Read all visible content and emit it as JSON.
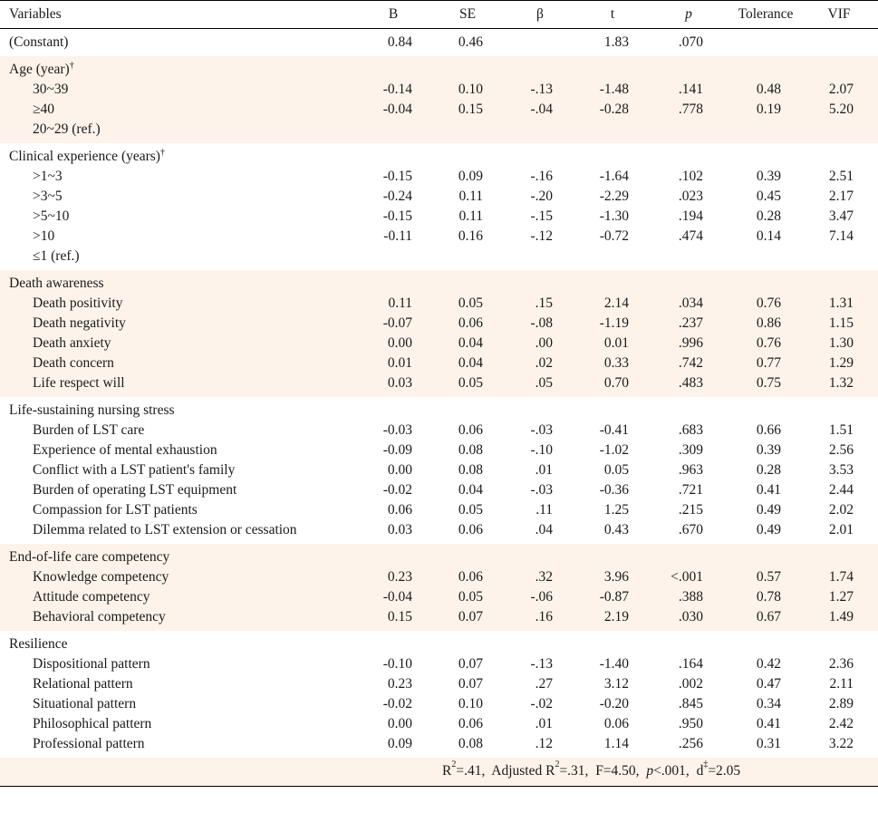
{
  "headers": {
    "variables": "Variables",
    "b": "B",
    "se": "SE",
    "beta": "β",
    "t": "t",
    "p": "p",
    "tolerance": "Tolerance",
    "vif": "VIF"
  },
  "constant": {
    "label": "(Constant)",
    "b": "0.84",
    "se": "0.46",
    "beta": "",
    "t": "1.83",
    "p": ".070",
    "tol": "",
    "vif": ""
  },
  "groups": [
    {
      "title": "Age (year)",
      "dagger": "†",
      "shaded": true,
      "rows": [
        {
          "label": "30~39",
          "b": "-0.14",
          "se": "0.10",
          "beta": "-.13",
          "t": "-1.48",
          "p": ".141",
          "tol": "0.48",
          "vif": "2.07"
        },
        {
          "label": "≥40",
          "b": "-0.04",
          "se": "0.15",
          "beta": "-.04",
          "t": "-0.28",
          "p": ".778",
          "tol": "0.19",
          "vif": "5.20"
        },
        {
          "label": "20~29 (ref.)",
          "b": "",
          "se": "",
          "beta": "",
          "t": "",
          "p": "",
          "tol": "",
          "vif": ""
        }
      ]
    },
    {
      "title": "Clinical experience (years)",
      "dagger": "†",
      "shaded": false,
      "rows": [
        {
          "label": ">1~3",
          "b": "-0.15",
          "se": "0.09",
          "beta": "-.16",
          "t": "-1.64",
          "p": ".102",
          "tol": "0.39",
          "vif": "2.51"
        },
        {
          "label": ">3~5",
          "b": "-0.24",
          "se": "0.11",
          "beta": "-.20",
          "t": "-2.29",
          "p": ".023",
          "tol": "0.45",
          "vif": "2.17"
        },
        {
          "label": ">5~10",
          "b": "-0.15",
          "se": "0.11",
          "beta": "-.15",
          "t": "-1.30",
          "p": ".194",
          "tol": "0.28",
          "vif": "3.47"
        },
        {
          "label": ">10",
          "b": "-0.11",
          "se": "0.16",
          "beta": "-.12",
          "t": "-0.72",
          "p": ".474",
          "tol": "0.14",
          "vif": "7.14"
        },
        {
          "label": "≤1 (ref.)",
          "b": "",
          "se": "",
          "beta": "",
          "t": "",
          "p": "",
          "tol": "",
          "vif": ""
        }
      ]
    },
    {
      "title": "Death awareness",
      "dagger": "",
      "shaded": true,
      "rows": [
        {
          "label": "Death positivity",
          "b": "0.11",
          "se": "0.05",
          "beta": ".15",
          "t": "2.14",
          "p": ".034",
          "tol": "0.76",
          "vif": "1.31"
        },
        {
          "label": "Death negativity",
          "b": "-0.07",
          "se": "0.06",
          "beta": "-.08",
          "t": "-1.19",
          "p": ".237",
          "tol": "0.86",
          "vif": "1.15"
        },
        {
          "label": "Death anxiety",
          "b": "0.00",
          "se": "0.04",
          "beta": ".00",
          "t": "0.01",
          "p": ".996",
          "tol": "0.76",
          "vif": "1.30"
        },
        {
          "label": "Death concern",
          "b": "0.01",
          "se": "0.04",
          "beta": ".02",
          "t": "0.33",
          "p": ".742",
          "tol": "0.77",
          "vif": "1.29"
        },
        {
          "label": "Life respect will",
          "b": "0.03",
          "se": "0.05",
          "beta": ".05",
          "t": "0.70",
          "p": ".483",
          "tol": "0.75",
          "vif": "1.32"
        }
      ]
    },
    {
      "title": "Life-sustaining nursing stress",
      "dagger": "",
      "shaded": false,
      "rows": [
        {
          "label": "Burden of LST care",
          "b": "-0.03",
          "se": "0.06",
          "beta": "-.03",
          "t": "-0.41",
          "p": ".683",
          "tol": "0.66",
          "vif": "1.51"
        },
        {
          "label": "Experience of mental exhaustion",
          "b": "-0.09",
          "se": "0.08",
          "beta": "-.10",
          "t": "-1.02",
          "p": ".309",
          "tol": "0.39",
          "vif": "2.56"
        },
        {
          "label": "Conflict with a LST patient's family",
          "b": "0.00",
          "se": "0.08",
          "beta": ".01",
          "t": "0.05",
          "p": ".963",
          "tol": "0.28",
          "vif": "3.53"
        },
        {
          "label": "Burden of operating LST equipment",
          "b": "-0.02",
          "se": "0.04",
          "beta": "-.03",
          "t": "-0.36",
          "p": ".721",
          "tol": "0.41",
          "vif": "2.44"
        },
        {
          "label": "Compassion for LST patients",
          "b": "0.06",
          "se": "0.05",
          "beta": ".11",
          "t": "1.25",
          "p": ".215",
          "tol": "0.49",
          "vif": "2.02"
        },
        {
          "label": "Dilemma related to LST extension or cessation",
          "b": "0.03",
          "se": "0.06",
          "beta": ".04",
          "t": "0.43",
          "p": ".670",
          "tol": "0.49",
          "vif": "2.01"
        }
      ]
    },
    {
      "title": "End-of-life care competency",
      "dagger": "",
      "shaded": true,
      "rows": [
        {
          "label": "Knowledge competency",
          "b": "0.23",
          "se": "0.06",
          "beta": ".32",
          "t": "3.96",
          "p": "<.001",
          "tol": "0.57",
          "vif": "1.74"
        },
        {
          "label": "Attitude competency",
          "b": "-0.04",
          "se": "0.05",
          "beta": "-.06",
          "t": "-0.87",
          "p": ".388",
          "tol": "0.78",
          "vif": "1.27"
        },
        {
          "label": "Behavioral competency",
          "b": "0.15",
          "se": "0.07",
          "beta": ".16",
          "t": "2.19",
          "p": ".030",
          "tol": "0.67",
          "vif": "1.49"
        }
      ]
    },
    {
      "title": "Resilience",
      "dagger": "",
      "shaded": false,
      "rows": [
        {
          "label": "Dispositional pattern",
          "b": "-0.10",
          "se": "0.07",
          "beta": "-.13",
          "t": "-1.40",
          "p": ".164",
          "tol": "0.42",
          "vif": "2.36"
        },
        {
          "label": "Relational pattern",
          "b": "0.23",
          "se": "0.07",
          "beta": ".27",
          "t": "3.12",
          "p": ".002",
          "tol": "0.47",
          "vif": "2.11"
        },
        {
          "label": "Situational pattern",
          "b": "-0.02",
          "se": "0.10",
          "beta": "-.02",
          "t": "-0.20",
          "p": ".845",
          "tol": "0.34",
          "vif": "2.89"
        },
        {
          "label": "Philosophical pattern",
          "b": "0.00",
          "se": "0.06",
          "beta": ".01",
          "t": "0.06",
          "p": ".950",
          "tol": "0.41",
          "vif": "2.42"
        },
        {
          "label": "Professional pattern",
          "b": "0.09",
          "se": "0.08",
          "beta": ".12",
          "t": "1.14",
          "p": ".256",
          "tol": "0.31",
          "vif": "3.22"
        }
      ]
    }
  ],
  "footer": {
    "r2": "R",
    "r2_sup": "2",
    "r2_val": "=.41,",
    "adj": "Adjusted R",
    "adj_sup": "2",
    "adj_val": "=.31,",
    "f": "F=4.50,",
    "p_sym": "p",
    "p_val": "<.001,",
    "d": "d",
    "d_sup": "‡",
    "d_val": "=2.05"
  }
}
